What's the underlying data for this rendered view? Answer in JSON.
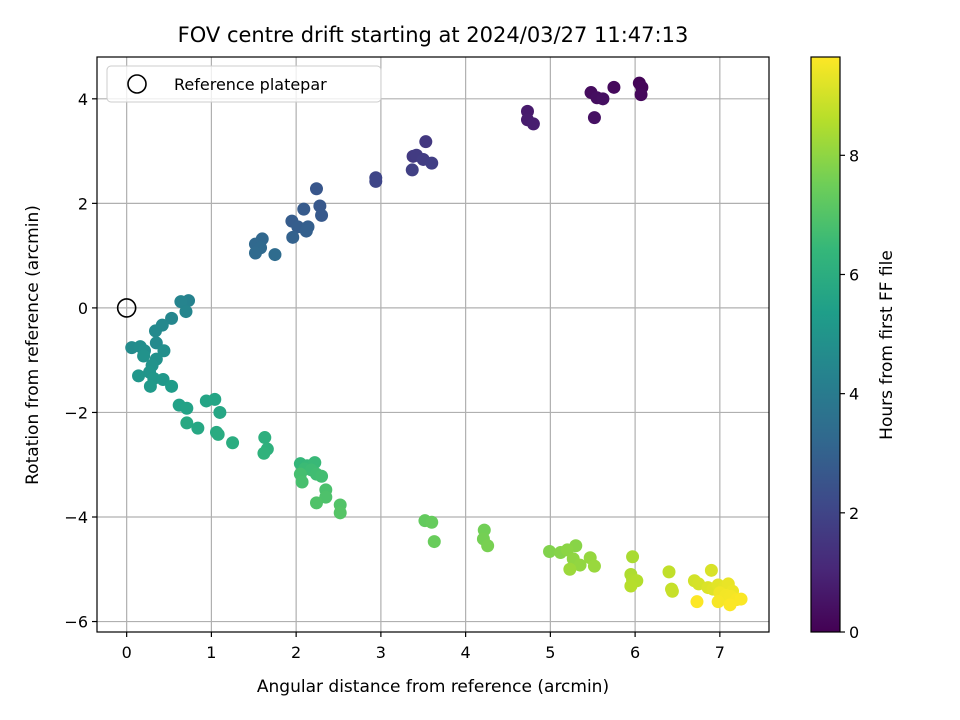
{
  "chart_data": {
    "type": "scatter",
    "title": "FOV centre drift starting at 2024/03/27 11:47:13",
    "xlabel": "Angular distance from reference (arcmin)",
    "ylabel": "Rotation from reference (arcmin)",
    "xlim": [
      -0.35,
      7.58
    ],
    "ylim": [
      -6.2,
      4.8
    ],
    "xticks": [
      0,
      1,
      2,
      3,
      4,
      5,
      6,
      7
    ],
    "yticks": [
      -6,
      -4,
      -2,
      0,
      2,
      4
    ],
    "grid": true,
    "legend": {
      "location": "top-left",
      "entries": [
        "Reference platepar"
      ]
    },
    "reference_point": {
      "x": 0,
      "y": 0,
      "label": "Reference platepar"
    },
    "colorbar": {
      "label": "Hours from first FF file",
      "range": [
        0,
        9.65
      ],
      "ticks": [
        0,
        2,
        4,
        6,
        8
      ],
      "colormap": "viridis"
    },
    "points": [
      [
        6.05,
        4.3,
        0.1
      ],
      [
        6.08,
        4.22,
        0.15
      ],
      [
        6.07,
        4.08,
        0.2
      ],
      [
        5.75,
        4.22,
        0.25
      ],
      [
        5.48,
        4.12,
        0.3
      ],
      [
        5.55,
        4.02,
        0.35
      ],
      [
        5.62,
        4.0,
        0.4
      ],
      [
        5.52,
        3.64,
        0.45
      ],
      [
        4.73,
        3.76,
        0.7
      ],
      [
        4.73,
        3.6,
        0.75
      ],
      [
        4.8,
        3.52,
        0.8
      ],
      [
        3.53,
        3.18,
        1.6
      ],
      [
        3.38,
        2.9,
        1.65
      ],
      [
        3.42,
        2.92,
        1.7
      ],
      [
        3.5,
        2.84,
        1.75
      ],
      [
        3.6,
        2.77,
        1.8
      ],
      [
        3.37,
        2.64,
        1.85
      ],
      [
        2.94,
        2.49,
        2.0
      ],
      [
        2.94,
        2.42,
        2.05
      ],
      [
        2.24,
        2.28,
        2.6
      ],
      [
        2.28,
        1.95,
        2.65
      ],
      [
        2.3,
        1.77,
        2.7
      ],
      [
        2.09,
        1.89,
        2.75
      ],
      [
        1.95,
        1.66,
        2.8
      ],
      [
        2.02,
        1.55,
        2.85
      ],
      [
        2.14,
        1.55,
        2.9
      ],
      [
        2.12,
        1.47,
        2.95
      ],
      [
        1.96,
        1.35,
        3.0
      ],
      [
        1.6,
        1.32,
        3.2
      ],
      [
        1.52,
        1.22,
        3.25
      ],
      [
        1.58,
        1.15,
        3.3
      ],
      [
        1.52,
        1.05,
        3.35
      ],
      [
        1.75,
        1.02,
        3.4
      ],
      [
        0.73,
        0.14,
        4.3
      ],
      [
        0.64,
        0.12,
        4.35
      ],
      [
        0.7,
        -0.07,
        4.4
      ],
      [
        0.53,
        -0.2,
        4.45
      ],
      [
        0.42,
        -0.33,
        4.5
      ],
      [
        0.34,
        -0.44,
        4.55
      ],
      [
        0.35,
        -0.67,
        4.6
      ],
      [
        0.06,
        -0.76,
        4.65
      ],
      [
        0.16,
        -0.74,
        4.7
      ],
      [
        0.21,
        -0.82,
        4.75
      ],
      [
        0.44,
        -0.82,
        4.8
      ],
      [
        0.35,
        -0.98,
        4.85
      ],
      [
        0.2,
        -0.92,
        4.9
      ],
      [
        0.3,
        -1.1,
        4.95
      ],
      [
        0.27,
        -1.23,
        5.0
      ],
      [
        0.14,
        -1.3,
        5.05
      ],
      [
        0.32,
        -1.35,
        5.1
      ],
      [
        0.43,
        -1.37,
        5.15
      ],
      [
        0.28,
        -1.5,
        5.2
      ],
      [
        0.53,
        -1.5,
        5.3
      ],
      [
        0.62,
        -1.86,
        5.5
      ],
      [
        0.71,
        -1.92,
        5.55
      ],
      [
        0.94,
        -1.78,
        5.6
      ],
      [
        1.04,
        -1.75,
        5.65
      ],
      [
        1.1,
        -2.0,
        5.7
      ],
      [
        0.84,
        -2.3,
        5.75
      ],
      [
        0.71,
        -2.2,
        5.8
      ],
      [
        1.06,
        -2.38,
        5.85
      ],
      [
        1.08,
        -2.42,
        5.9
      ],
      [
        1.25,
        -2.58,
        5.95
      ],
      [
        1.63,
        -2.48,
        6.1
      ],
      [
        1.66,
        -2.7,
        6.15
      ],
      [
        1.62,
        -2.78,
        6.2
      ],
      [
        2.05,
        -2.98,
        6.4
      ],
      [
        2.13,
        -3.02,
        6.45
      ],
      [
        2.22,
        -2.96,
        6.5
      ],
      [
        2.1,
        -3.08,
        6.55
      ],
      [
        2.18,
        -3.1,
        6.6
      ],
      [
        2.24,
        -3.18,
        6.65
      ],
      [
        2.3,
        -3.22,
        6.7
      ],
      [
        2.05,
        -3.18,
        6.75
      ],
      [
        2.07,
        -3.33,
        6.8
      ],
      [
        2.35,
        -3.48,
        6.85
      ],
      [
        2.35,
        -3.62,
        6.9
      ],
      [
        2.24,
        -3.73,
        6.95
      ],
      [
        2.52,
        -3.77,
        7.0
      ],
      [
        2.52,
        -3.92,
        7.05
      ],
      [
        3.52,
        -4.07,
        7.3
      ],
      [
        3.6,
        -4.1,
        7.35
      ],
      [
        3.63,
        -4.47,
        7.4
      ],
      [
        4.22,
        -4.25,
        7.55
      ],
      [
        4.21,
        -4.42,
        7.6
      ],
      [
        4.26,
        -4.55,
        7.65
      ],
      [
        4.99,
        -4.66,
        7.8
      ],
      [
        5.12,
        -4.68,
        7.85
      ],
      [
        5.3,
        -4.55,
        7.9
      ],
      [
        5.2,
        -4.63,
        7.95
      ],
      [
        5.27,
        -4.8,
        8.0
      ],
      [
        5.35,
        -4.92,
        8.05
      ],
      [
        5.47,
        -4.78,
        8.1
      ],
      [
        5.52,
        -4.94,
        8.15
      ],
      [
        5.23,
        -5.0,
        8.2
      ],
      [
        5.97,
        -4.76,
        8.4
      ],
      [
        5.95,
        -5.1,
        8.45
      ],
      [
        5.97,
        -5.2,
        8.5
      ],
      [
        6.02,
        -5.22,
        8.55
      ],
      [
        5.95,
        -5.32,
        8.6
      ],
      [
        6.4,
        -5.05,
        8.75
      ],
      [
        6.43,
        -5.38,
        8.8
      ],
      [
        6.44,
        -5.42,
        8.85
      ],
      [
        6.7,
        -5.22,
        9.0
      ],
      [
        6.75,
        -5.28,
        9.05
      ],
      [
        6.9,
        -5.02,
        9.1
      ],
      [
        6.86,
        -5.35,
        9.15
      ],
      [
        6.92,
        -5.38,
        9.2
      ],
      [
        6.98,
        -5.3,
        9.25
      ],
      [
        7.05,
        -5.35,
        9.3
      ],
      [
        7.1,
        -5.28,
        9.35
      ],
      [
        7.15,
        -5.42,
        9.4
      ],
      [
        7.0,
        -5.45,
        9.45
      ],
      [
        7.07,
        -5.5,
        9.5
      ],
      [
        7.13,
        -5.52,
        9.52
      ],
      [
        6.98,
        -5.62,
        9.55
      ],
      [
        7.2,
        -5.58,
        9.58
      ],
      [
        7.25,
        -5.57,
        9.6
      ],
      [
        7.12,
        -5.68,
        9.62
      ],
      [
        6.73,
        -5.62,
        9.64
      ]
    ]
  },
  "colors": {
    "grid": "#b0b0b0",
    "reference_marker": "#000000",
    "viridis": [
      "#440154",
      "#482878",
      "#3e4989",
      "#31688e",
      "#26828e",
      "#1f9e89",
      "#35b779",
      "#6ece58",
      "#b5de2b",
      "#fde725"
    ]
  }
}
